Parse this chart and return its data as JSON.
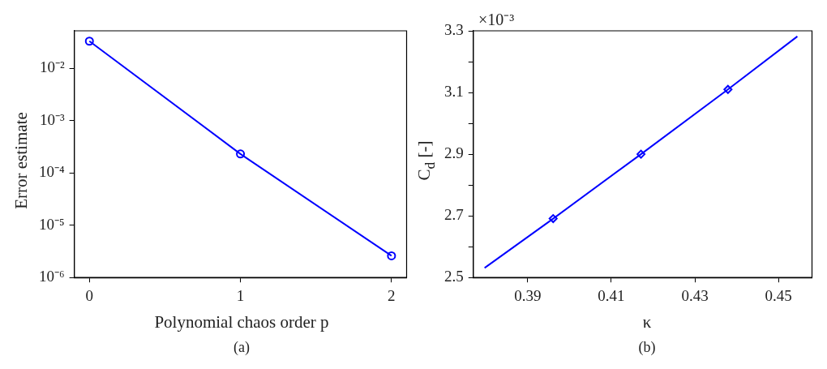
{
  "chart_data": [
    {
      "type": "line",
      "xlabel": "Polynomial chaos order p",
      "ylabel": "Error estimate",
      "annotations": [
        "(a)"
      ],
      "log": "y",
      "grid": false,
      "marker": "circle",
      "line_style": "solid",
      "x": [
        0,
        1,
        2
      ],
      "series": [
        {
          "color": "#0000ff",
          "values": [
            0.033,
            0.00023,
            2.6e-06
          ]
        }
      ],
      "xlim": [
        -0.1,
        2.1
      ],
      "xticks": [
        0,
        1,
        2
      ],
      "ylim": [
        1e-06,
        0.052
      ],
      "yticks": [
        {
          "value": 1e-06,
          "label": "10⁻⁶"
        },
        {
          "value": 1e-05,
          "label": "10⁻⁵"
        },
        {
          "value": 0.0001,
          "label": "10⁻⁴"
        },
        {
          "value": 0.001,
          "label": "10⁻³"
        },
        {
          "value": 0.01,
          "label": "10⁻²"
        }
      ]
    },
    {
      "type": "line",
      "xlabel": "κ",
      "ylabel": "C$_{d}$ [-]",
      "annotations": [
        "×10⁻³",
        "(b)"
      ],
      "grid": false,
      "series": [
        {
          "marker": "none",
          "color": "#0000ff",
          "x": [
            0.3797,
            0.3961,
            0.4171,
            0.4379,
            0.4545
          ],
          "values": [
            2.531,
            2.691,
            2.9,
            3.11,
            3.282
          ]
        },
        {
          "type": "scatter",
          "marker": "diamond",
          "color": "#0000ff",
          "x": [
            0.3961,
            0.4171,
            0.4379
          ],
          "values": [
            2.691,
            2.9,
            3.11
          ]
        }
      ],
      "xlim": [
        0.377,
        0.458
      ],
      "xticks": [
        0.39,
        0.41,
        0.43,
        0.45
      ],
      "ylim": [
        2.5,
        3.3
      ],
      "yticks": [
        2.5,
        {
          "value": 2.6,
          "label": null
        },
        2.7,
        {
          "value": 2.8,
          "label": null
        },
        2.9,
        {
          "value": 3.0,
          "label": null
        },
        3.1,
        {
          "value": 3.2,
          "label": null
        },
        3.3
      ]
    }
  ]
}
